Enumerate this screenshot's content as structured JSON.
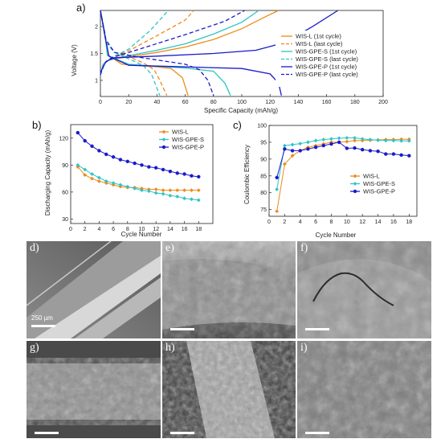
{
  "chart_data": [
    {
      "panel": "a)",
      "type": "line",
      "xlabel": "Specific Capacity (mAh/g)",
      "ylabel": "Voltage (V)",
      "xlim": [
        0,
        200
      ],
      "ylim": [
        0.7,
        2.3
      ],
      "xticks": [
        0,
        20,
        40,
        60,
        80,
        100,
        120,
        140,
        160,
        180,
        200
      ],
      "yticks": [
        1.0,
        1.5,
        2.0
      ],
      "legend": "right",
      "series": [
        {
          "name": "WIS-L (1st cycle)",
          "color": "#ef8a1a",
          "dash": false,
          "charge": [
            [
              0,
              1.1
            ],
            [
              2,
              1.3
            ],
            [
              6,
              1.38
            ],
            [
              20,
              1.44
            ],
            [
              40,
              1.52
            ],
            [
              60,
              1.62
            ],
            [
              80,
              1.76
            ],
            [
              100,
              1.96
            ],
            [
              118,
              2.2
            ],
            [
              126,
              2.3
            ]
          ],
          "discharge": [
            [
              0,
              2.3
            ],
            [
              3,
              1.9
            ],
            [
              5,
              1.48
            ],
            [
              15,
              1.3
            ],
            [
              30,
              1.27
            ],
            [
              40,
              1.25
            ],
            [
              50,
              1.22
            ],
            [
              58,
              1.05
            ],
            [
              62,
              0.72
            ]
          ]
        },
        {
          "name": "WIS-L (last cycle)",
          "color": "#ef8a1a",
          "dash": true,
          "charge": [
            [
              0,
              1.1
            ],
            [
              2,
              1.3
            ],
            [
              6,
              1.4
            ],
            [
              20,
              1.55
            ],
            [
              40,
              1.83
            ],
            [
              60,
              2.12
            ],
            [
              66,
              2.3
            ]
          ],
          "discharge": [
            [
              0,
              2.3
            ],
            [
              4,
              1.7
            ],
            [
              10,
              1.52
            ],
            [
              20,
              1.44
            ],
            [
              30,
              1.33
            ],
            [
              38,
              1.2
            ],
            [
              42,
              1.0
            ],
            [
              47,
              0.72
            ]
          ]
        },
        {
          "name": "WIS-GPE-S (1st cycle)",
          "color": "#2ec4c4",
          "dash": false,
          "charge": [
            [
              0,
              1.1
            ],
            [
              2,
              1.3
            ],
            [
              6,
              1.38
            ],
            [
              20,
              1.46
            ],
            [
              40,
              1.56
            ],
            [
              60,
              1.68
            ],
            [
              80,
              1.86
            ],
            [
              100,
              2.08
            ],
            [
              112,
              2.3
            ]
          ],
          "discharge": [
            [
              0,
              2.3
            ],
            [
              3,
              1.9
            ],
            [
              5,
              1.46
            ],
            [
              20,
              1.3
            ],
            [
              40,
              1.26
            ],
            [
              60,
              1.23
            ],
            [
              80,
              1.17
            ],
            [
              88,
              0.95
            ],
            [
              92,
              0.72
            ]
          ]
        },
        {
          "name": "WIS-GPE-S (last cycle)",
          "color": "#2ec4c4",
          "dash": true,
          "charge": [
            [
              0,
              1.1
            ],
            [
              2,
              1.3
            ],
            [
              6,
              1.4
            ],
            [
              20,
              1.58
            ],
            [
              35,
              1.92
            ],
            [
              48,
              2.3
            ]
          ],
          "discharge": [
            [
              0,
              2.3
            ],
            [
              4,
              1.7
            ],
            [
              10,
              1.52
            ],
            [
              20,
              1.4
            ],
            [
              30,
              1.28
            ],
            [
              36,
              1.12
            ],
            [
              42,
              0.72
            ]
          ]
        },
        {
          "name": "WIS-GPE-P (1st cycle)",
          "color": "#1a1acc",
          "dash": false,
          "charge": [
            [
              0,
              1.15
            ],
            [
              4,
              1.35
            ],
            [
              10,
              1.42
            ],
            [
              40,
              1.45
            ],
            [
              80,
              1.5
            ],
            [
              110,
              1.56
            ],
            [
              130,
              1.7
            ],
            [
              150,
              2.0
            ],
            [
              168,
              2.3
            ]
          ],
          "discharge": [
            [
              0,
              2.3
            ],
            [
              3,
              1.85
            ],
            [
              6,
              1.45
            ],
            [
              20,
              1.28
            ],
            [
              60,
              1.25
            ],
            [
              100,
              1.22
            ],
            [
              120,
              1.12
            ],
            [
              126,
              0.95
            ],
            [
              128,
              0.72
            ]
          ]
        },
        {
          "name": "WIS-GPE-P (last cycle)",
          "color": "#1a1acc",
          "dash": true,
          "charge": [
            [
              0,
              1.1
            ],
            [
              3,
              1.32
            ],
            [
              8,
              1.42
            ],
            [
              30,
              1.6
            ],
            [
              60,
              1.85
            ],
            [
              88,
              2.1
            ],
            [
              102,
              2.3
            ]
          ],
          "discharge": [
            [
              0,
              2.3
            ],
            [
              4,
              1.75
            ],
            [
              10,
              1.52
            ],
            [
              25,
              1.44
            ],
            [
              45,
              1.36
            ],
            [
              60,
              1.3
            ],
            [
              70,
              1.2
            ],
            [
              76,
              1.0
            ],
            [
              80,
              0.72
            ]
          ]
        }
      ]
    },
    {
      "panel": "b)",
      "type": "line",
      "xlabel": "Cycle Number",
      "ylabel": "Discharging Capacity (mAh/g)",
      "xlim": [
        0,
        20
      ],
      "ylim": [
        25,
        135
      ],
      "xticks": [
        0,
        2,
        4,
        6,
        8,
        10,
        12,
        14,
        16,
        18
      ],
      "yticks": [
        30,
        60,
        90,
        120
      ],
      "legend": "top-right",
      "x": [
        1,
        2,
        3,
        4,
        5,
        6,
        7,
        8,
        9,
        10,
        11,
        12,
        13,
        14,
        15,
        16,
        17,
        18
      ],
      "series": [
        {
          "name": "WIS-L",
          "color": "#ef8a1a",
          "marker": "diamond",
          "values": [
            88,
            79,
            75,
            72,
            70,
            68,
            66,
            65,
            65,
            64,
            63,
            63,
            62,
            62,
            62,
            62,
            62,
            62
          ]
        },
        {
          "name": "WIS-GPE-S",
          "color": "#2ec4c4",
          "marker": "diamond",
          "values": [
            90,
            85,
            80,
            76,
            72,
            70,
            68,
            66,
            64,
            62,
            61,
            59,
            58,
            56,
            55,
            53,
            52,
            51
          ]
        },
        {
          "name": "WIS-GPE-P",
          "color": "#1a1acc",
          "marker": "circle",
          "values": [
            126,
            117,
            111,
            106,
            102,
            99,
            96,
            94,
            92,
            90,
            88,
            87,
            85,
            83,
            81,
            80,
            78,
            77
          ]
        }
      ]
    },
    {
      "panel": "c)",
      "type": "line",
      "xlabel": "Cycle Number",
      "ylabel": "Coulombic Efficiency",
      "xlim": [
        0,
        19
      ],
      "ylim": [
        73,
        100
      ],
      "xticks": [
        0,
        2,
        4,
        6,
        8,
        10,
        12,
        14,
        16,
        18
      ],
      "yticks": [
        75,
        80,
        85,
        90,
        95,
        100
      ],
      "legend": "lower-right",
      "x": [
        1,
        2,
        3,
        4,
        5,
        6,
        7,
        8,
        9,
        10,
        11,
        12,
        13,
        14,
        15,
        16,
        17,
        18
      ],
      "series": [
        {
          "name": "WIS-L",
          "color": "#ef8a1a",
          "marker": "diamond",
          "values": [
            74.5,
            88.5,
            91,
            92.5,
            93.5,
            94,
            94.5,
            95,
            95,
            95.2,
            95.5,
            95.5,
            95.6,
            95.7,
            95.8,
            95.8,
            95.9,
            95.9
          ]
        },
        {
          "name": "WIS-GPE-S",
          "color": "#2ec4c4",
          "marker": "diamond",
          "values": [
            81,
            94,
            94.3,
            94.6,
            95,
            95.5,
            95.8,
            96,
            96.2,
            96.3,
            96.3,
            96,
            95.8,
            95.6,
            95.5,
            95.5,
            95.4,
            95.4
          ]
        },
        {
          "name": "WIS-GPE-P",
          "color": "#1a1acc",
          "marker": "circle",
          "values": [
            84.5,
            93,
            92.5,
            92.5,
            93,
            93.5,
            94,
            94.5,
            95,
            93.2,
            93.3,
            92.8,
            92.5,
            92.3,
            91.5,
            91.5,
            91.2,
            91
          ]
        }
      ]
    }
  ],
  "sem_panels": [
    {
      "label": "d)",
      "scalebar_text": "250 µm"
    },
    {
      "label": "e)",
      "scalebar_text": ""
    },
    {
      "label": "f)",
      "scalebar_text": ""
    },
    {
      "label": "g)",
      "scalebar_text": ""
    },
    {
      "label": "h)",
      "scalebar_text": ""
    },
    {
      "label": "i)",
      "scalebar_text": ""
    }
  ]
}
